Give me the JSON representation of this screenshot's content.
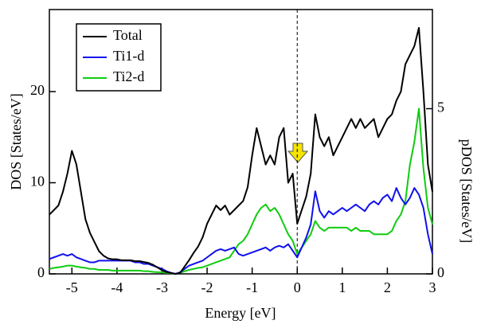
{
  "chart_data": {
    "type": "line",
    "xlabel": "Energy [eV]",
    "ylabel": "DOS [States/eV]",
    "y2label": "pDOS [States/eV]",
    "x": [
      -5.5,
      -5.4,
      -5.3,
      -5.2,
      -5.1,
      -5.0,
      -4.9,
      -4.8,
      -4.7,
      -4.6,
      -4.5,
      -4.4,
      -4.3,
      -4.2,
      -4.1,
      -4.0,
      -3.9,
      -3.8,
      -3.7,
      -3.6,
      -3.5,
      -3.4,
      -3.3,
      -3.2,
      -3.1,
      -3.0,
      -2.9,
      -2.8,
      -2.7,
      -2.6,
      -2.5,
      -2.4,
      -2.3,
      -2.2,
      -2.1,
      -2.0,
      -1.9,
      -1.8,
      -1.7,
      -1.6,
      -1.5,
      -1.4,
      -1.3,
      -1.2,
      -1.1,
      -1.0,
      -0.9,
      -0.8,
      -0.7,
      -0.6,
      -0.5,
      -0.4,
      -0.3,
      -0.2,
      -0.1,
      0.0,
      0.1,
      0.2,
      0.3,
      0.4,
      0.5,
      0.6,
      0.7,
      0.8,
      0.9,
      1.0,
      1.1,
      1.2,
      1.3,
      1.4,
      1.5,
      1.6,
      1.7,
      1.8,
      1.9,
      2.0,
      2.1,
      2.2,
      2.3,
      2.4,
      2.5,
      2.6,
      2.7,
      2.8,
      2.9,
      3.0
    ],
    "series": [
      {
        "name": "Total",
        "color": "#000000",
        "axis": "y",
        "values": [
          6.5,
          7,
          7.5,
          9,
          11,
          13.5,
          12,
          9,
          6,
          4.5,
          3.5,
          2.5,
          2,
          1.7,
          1.6,
          1.6,
          1.5,
          1.5,
          1.5,
          1.4,
          1.4,
          1.3,
          1.2,
          1.0,
          0.7,
          0.4,
          0.2,
          0.1,
          0,
          0.1,
          0.8,
          1.5,
          2.3,
          3.0,
          4.0,
          5.5,
          6.5,
          7.5,
          7.0,
          7.5,
          6.5,
          7.0,
          7.5,
          8.0,
          9.5,
          13,
          16,
          14,
          12,
          13,
          12,
          15,
          16,
          10,
          11,
          5.5,
          7,
          8.5,
          11,
          17.5,
          15,
          14,
          15,
          13,
          14,
          15,
          16,
          17,
          16,
          17,
          16,
          16.5,
          17,
          15,
          16,
          17,
          17.5,
          19,
          20,
          23,
          24,
          25,
          27,
          20,
          12,
          9
        ]
      },
      {
        "name": "Ti1-d",
        "color": "#1010ee",
        "axis": "y2",
        "values": [
          0.45,
          0.5,
          0.55,
          0.6,
          0.55,
          0.6,
          0.5,
          0.45,
          0.4,
          0.35,
          0.35,
          0.4,
          0.4,
          0.4,
          0.4,
          0.4,
          0.4,
          0.4,
          0.4,
          0.35,
          0.35,
          0.3,
          0.3,
          0.25,
          0.2,
          0.15,
          0.08,
          0.03,
          0,
          0.05,
          0.15,
          0.25,
          0.3,
          0.35,
          0.4,
          0.5,
          0.6,
          0.7,
          0.75,
          0.7,
          0.75,
          0.8,
          0.6,
          0.55,
          0.6,
          0.65,
          0.7,
          0.75,
          0.8,
          0.7,
          0.8,
          0.85,
          0.8,
          0.9,
          0.7,
          0.5,
          0.8,
          1.1,
          1.5,
          2.5,
          1.9,
          1.7,
          1.9,
          1.8,
          1.9,
          2.0,
          1.9,
          2.0,
          2.1,
          2.0,
          1.9,
          2.1,
          2.2,
          2.1,
          2.3,
          2.4,
          2.2,
          2.6,
          2.3,
          2.1,
          2.3,
          2.6,
          2.4,
          2.0,
          1.2,
          0.6
        ]
      },
      {
        "name": "Ti2-d",
        "color": "#10cc10",
        "axis": "y2",
        "values": [
          0.15,
          0.18,
          0.2,
          0.22,
          0.25,
          0.25,
          0.22,
          0.2,
          0.18,
          0.15,
          0.15,
          0.12,
          0.12,
          0.12,
          0.1,
          0.1,
          0.1,
          0.1,
          0.1,
          0.1,
          0.1,
          0.08,
          0.08,
          0.06,
          0.05,
          0.05,
          0.03,
          0.02,
          0,
          0.03,
          0.08,
          0.12,
          0.15,
          0.18,
          0.2,
          0.25,
          0.3,
          0.35,
          0.4,
          0.45,
          0.5,
          0.7,
          0.9,
          1.0,
          1.2,
          1.5,
          1.8,
          2.0,
          2.1,
          1.9,
          2.0,
          1.8,
          1.5,
          1.2,
          1.0,
          0.6,
          0.8,
          1.0,
          1.2,
          1.6,
          1.4,
          1.3,
          1.4,
          1.4,
          1.4,
          1.4,
          1.4,
          1.3,
          1.4,
          1.3,
          1.3,
          1.3,
          1.2,
          1.2,
          1.2,
          1.2,
          1.3,
          1.6,
          1.8,
          2.2,
          3.3,
          4.0,
          5.0,
          3.2,
          2.0,
          1.5
        ]
      }
    ],
    "xlim": [
      -5.5,
      3
    ],
    "xticks": [
      -5,
      -4,
      -3,
      -2,
      -1,
      0,
      1,
      2,
      3
    ],
    "ylim": [
      0,
      29
    ],
    "yticks": [
      0,
      10,
      20
    ],
    "y2lim": [
      0,
      8
    ],
    "y2ticks": [
      0,
      5
    ],
    "vlines": [
      0
    ],
    "legend": "upper-left"
  }
}
